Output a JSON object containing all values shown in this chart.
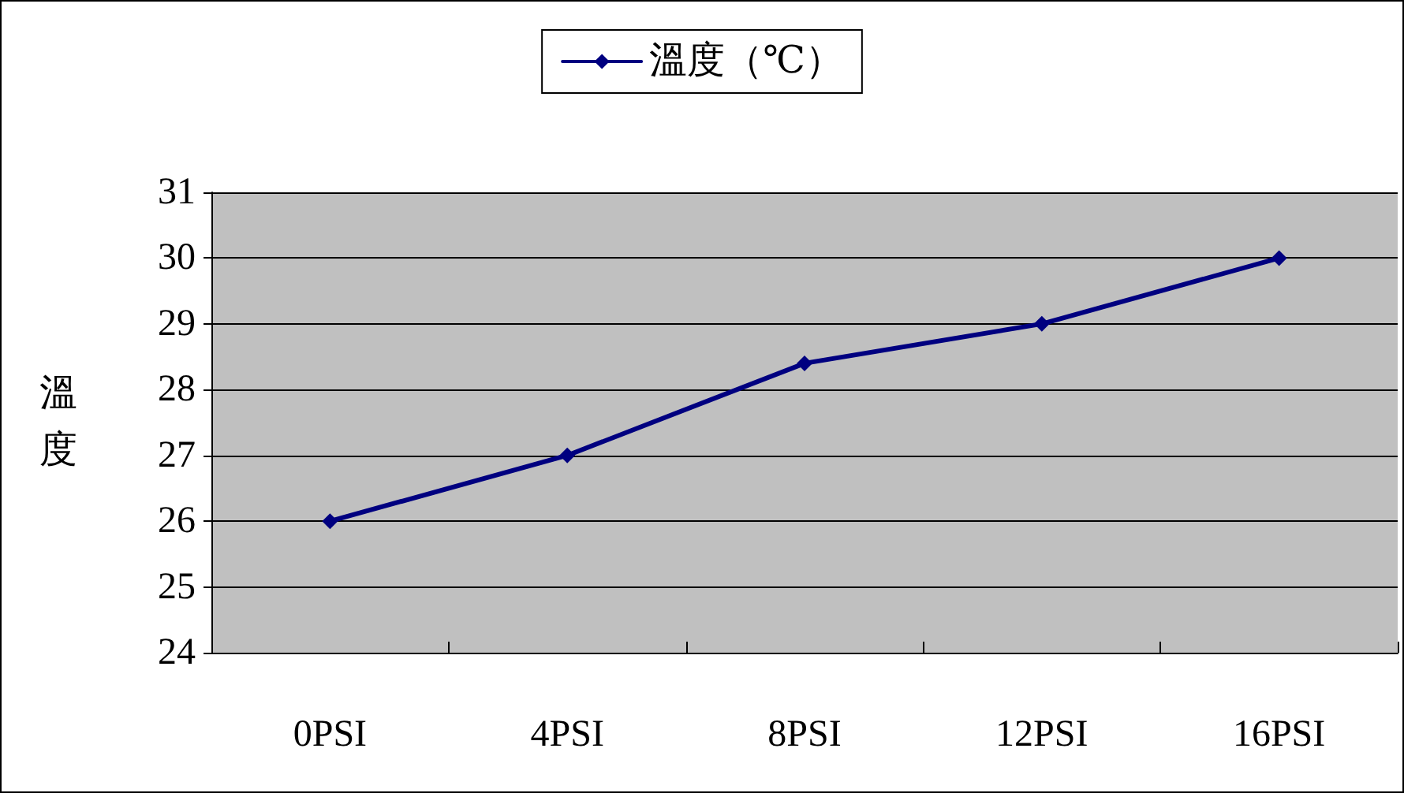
{
  "chart_data": {
    "type": "line",
    "ylabel": "溫度",
    "categories": [
      "0PSI",
      "4PSI",
      "8PSI",
      "12PSI",
      "16PSI"
    ],
    "series": [
      {
        "name": "溫度（℃）",
        "color": "#000080",
        "values": [
          26,
          27,
          28.4,
          29,
          30
        ]
      }
    ],
    "ylim": [
      24,
      31
    ],
    "yticks": [
      24,
      25,
      26,
      27,
      28,
      29,
      30,
      31
    ],
    "grid": "y",
    "legend": "top",
    "marker": "diamond",
    "line_style": "solid"
  }
}
